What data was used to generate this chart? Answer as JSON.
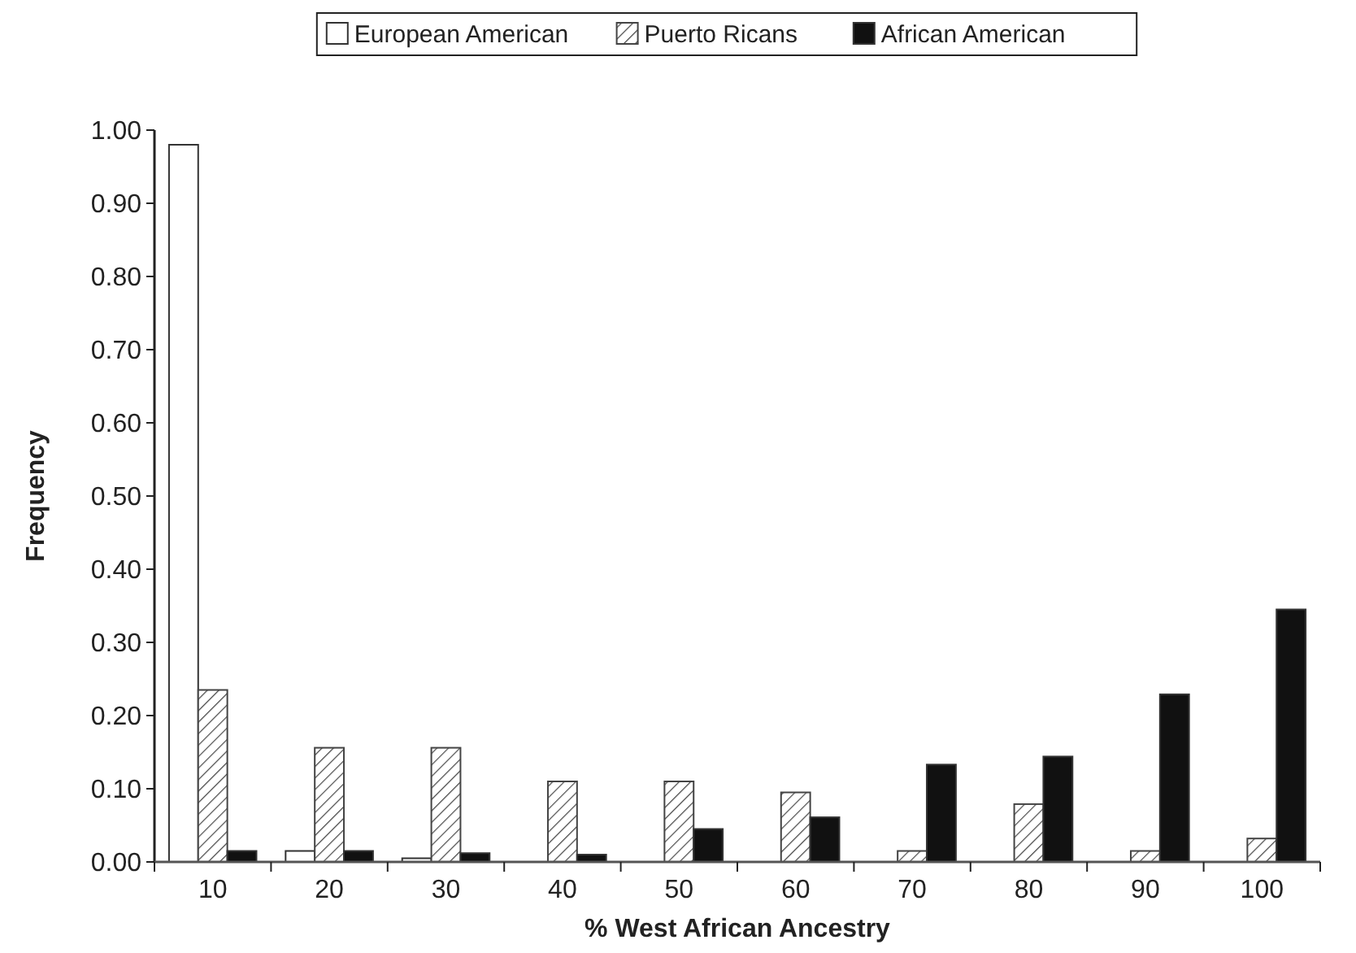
{
  "chart_data": {
    "type": "bar",
    "xlabel": "% West African Ancestry",
    "ylabel": "Frequency",
    "categories": [
      "10",
      "20",
      "30",
      "40",
      "50",
      "60",
      "70",
      "80",
      "90",
      "100"
    ],
    "series": [
      {
        "name": "European American",
        "color": "#ffffff",
        "values": [
          0.98,
          0.015,
          0.005,
          0,
          0,
          0,
          0,
          0,
          0,
          0
        ]
      },
      {
        "name": "Puerto Ricans",
        "color": "#444444",
        "values": [
          0.235,
          0.156,
          0.156,
          0.11,
          0.11,
          0.095,
          0.015,
          0.079,
          0.015,
          0.032
        ]
      },
      {
        "name": "African American",
        "color": "#111111",
        "values": [
          0.015,
          0.015,
          0.012,
          0.01,
          0.045,
          0.061,
          0.133,
          0.144,
          0.229,
          0.345
        ]
      }
    ],
    "ylim": [
      0,
      1
    ],
    "yticks": [
      {
        "value": 0,
        "label": "0.00"
      },
      {
        "value": 0.1,
        "label": "0.10"
      },
      {
        "value": 0.2,
        "label": "0.20"
      },
      {
        "value": 0.3,
        "label": "0.30"
      },
      {
        "value": 0.4,
        "label": "0.40"
      },
      {
        "value": 0.5,
        "label": "0.50"
      },
      {
        "value": 0.6,
        "label": "0.60"
      },
      {
        "value": 0.7,
        "label": "0.70"
      },
      {
        "value": 0.8,
        "label": "0.80"
      },
      {
        "value": 0.9,
        "label": "0.90"
      },
      {
        "value": 1,
        "label": "1.00"
      }
    ],
    "grid": false,
    "legend": "top"
  }
}
